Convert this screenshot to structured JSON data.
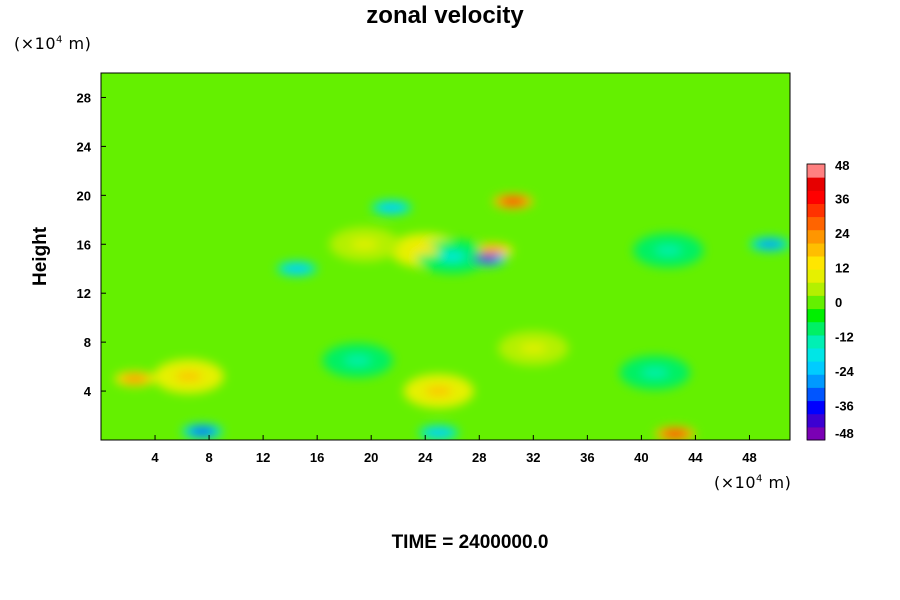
{
  "chart_data": {
    "type": "heatmap",
    "title": "zonal velocity",
    "ylabel": "Height",
    "x_unit": "(×10⁴ m)",
    "y_unit": "(×10⁴ m)",
    "xlim": [
      0,
      51
    ],
    "ylim": [
      0,
      30
    ],
    "x_ticks": [
      4,
      8,
      12,
      16,
      20,
      24,
      28,
      32,
      36,
      40,
      44,
      48
    ],
    "y_ticks": [
      4,
      8,
      12,
      16,
      20,
      24,
      28
    ],
    "colorbar": {
      "range": [
        -48,
        48
      ],
      "ticks": [
        48,
        36,
        24,
        12,
        0,
        -12,
        -24,
        -36,
        -48
      ],
      "colors": [
        "#7a00b4",
        "#3c00d2",
        "#0000ff",
        "#0055ff",
        "#0099ff",
        "#00ccff",
        "#00e6e6",
        "#00f0b4",
        "#00f064",
        "#00f000",
        "#64f000",
        "#b4f000",
        "#e6f000",
        "#ffe600",
        "#ffbe00",
        "#ff9600",
        "#ff6400",
        "#ff3200",
        "#ff0000",
        "#e60000",
        "#ff8080"
      ]
    },
    "annotation": "TIME = 2400000.0",
    "features": [
      {
        "x": 30.5,
        "y": 19.5,
        "value": 30
      },
      {
        "x": 21.5,
        "y": 19.0,
        "value": -22
      },
      {
        "x": 29.0,
        "y": 15.5,
        "value": 24
      },
      {
        "x": 28.5,
        "y": 14.8,
        "value": -40
      },
      {
        "x": 24.0,
        "y": 15.5,
        "value": 14
      },
      {
        "x": 26.0,
        "y": 15.0,
        "value": -18
      },
      {
        "x": 19.5,
        "y": 16.0,
        "value": 8
      },
      {
        "x": 14.5,
        "y": 14.0,
        "value": -22
      },
      {
        "x": 49.5,
        "y": 16.0,
        "value": -26
      },
      {
        "x": 42.0,
        "y": 15.5,
        "value": -16
      },
      {
        "x": 2.5,
        "y": 5.0,
        "value": 22
      },
      {
        "x": 6.5,
        "y": 5.2,
        "value": 18
      },
      {
        "x": 7.5,
        "y": 0.7,
        "value": -34
      },
      {
        "x": 25.0,
        "y": 0.6,
        "value": -24
      },
      {
        "x": 42.5,
        "y": 0.5,
        "value": 30
      },
      {
        "x": 25.0,
        "y": 4.0,
        "value": 16
      },
      {
        "x": 19.0,
        "y": 6.5,
        "value": -12
      },
      {
        "x": 41.0,
        "y": 5.5,
        "value": -12
      },
      {
        "x": 32.0,
        "y": 7.5,
        "value": 10
      }
    ]
  }
}
